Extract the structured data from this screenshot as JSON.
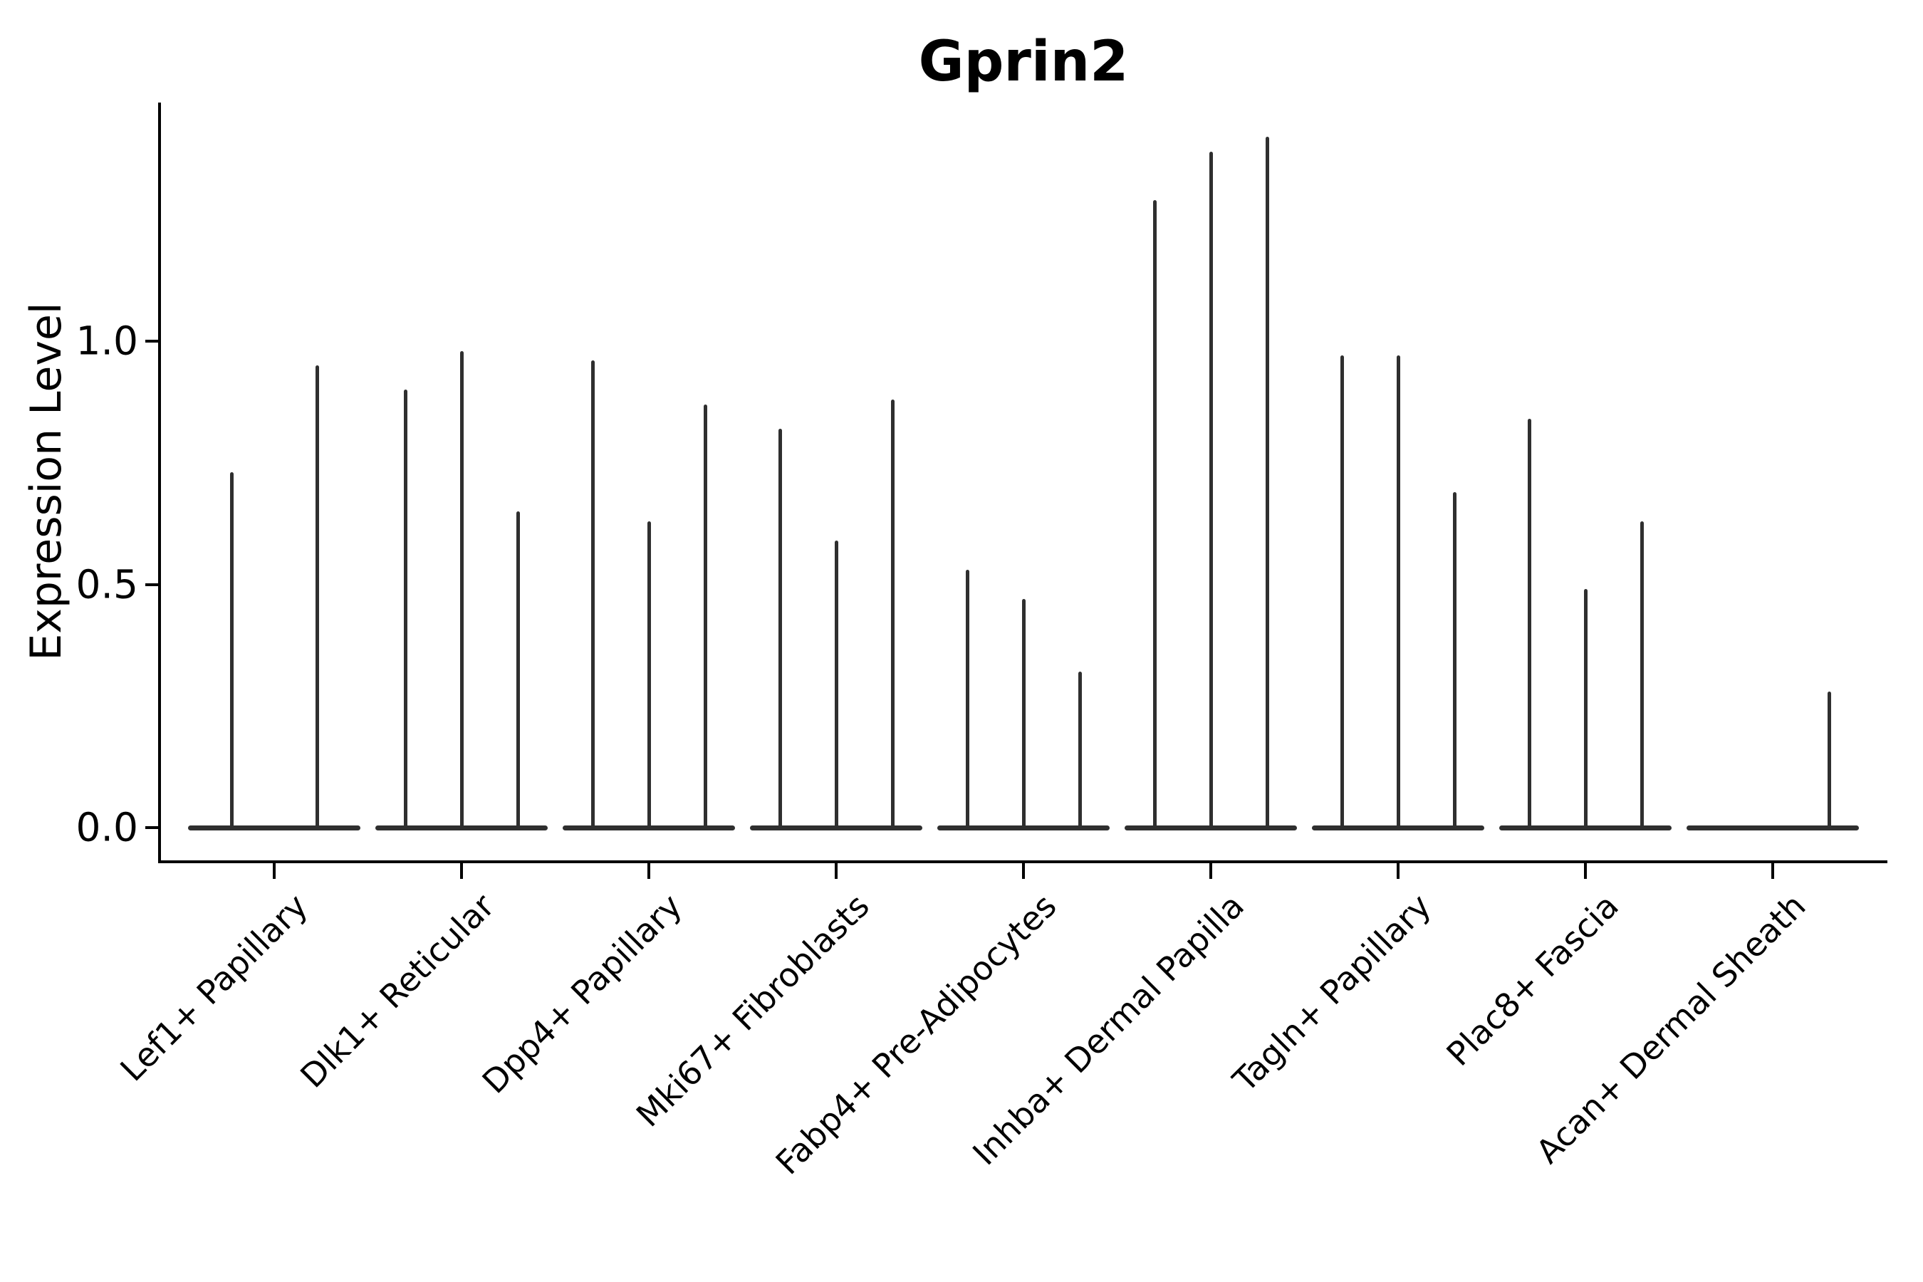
{
  "title": "Gprin2",
  "ylabel": "Expression Level",
  "colors": {
    "violin": "#2f2f2f",
    "axis": "#000000",
    "text": "#000000",
    "background": "#ffffff"
  },
  "chart_data": {
    "type": "violin",
    "title": "Gprin2",
    "xlabel": "",
    "ylabel": "Expression Level",
    "ylim": [
      -0.07,
      1.49
    ],
    "grid": false,
    "legend": null,
    "yticks": {
      "values": [
        0,
        0.5,
        1.0
      ],
      "labels": [
        "0.0",
        "0.5",
        "1.0"
      ]
    },
    "note": "Seurat/scanpy-style stacked violin: per category up to 3 thin split violins; density collapsed flat at 0 with a thin spike reaching the max expression value.",
    "groups": [
      {
        "category": "Lef1+ Papillary",
        "n_slots": 2,
        "spikes": [
          {
            "slot": 0,
            "max": 0.73
          },
          {
            "slot": 1,
            "max": 0.95
          }
        ]
      },
      {
        "category": "Dlk1+ Reticular",
        "n_slots": 3,
        "spikes": [
          {
            "slot": 0,
            "max": 0.9
          },
          {
            "slot": 1,
            "max": 0.98
          },
          {
            "slot": 2,
            "max": 0.65
          }
        ]
      },
      {
        "category": "Dpp4+ Papillary",
        "n_slots": 3,
        "spikes": [
          {
            "slot": 0,
            "max": 0.96
          },
          {
            "slot": 1,
            "max": 0.63
          },
          {
            "slot": 2,
            "max": 0.87
          }
        ]
      },
      {
        "category": "Mki67+ Fibroblasts",
        "n_slots": 3,
        "spikes": [
          {
            "slot": 0,
            "max": 0.82
          },
          {
            "slot": 1,
            "max": 0.59
          },
          {
            "slot": 2,
            "max": 0.88
          }
        ]
      },
      {
        "category": "Fabp4+ Pre-Adipocytes",
        "n_slots": 3,
        "spikes": [
          {
            "slot": 0,
            "max": 0.53
          },
          {
            "slot": 1,
            "max": 0.47
          },
          {
            "slot": 2,
            "max": 0.32
          }
        ]
      },
      {
        "category": "Inhba+ Dermal Papilla",
        "n_slots": 3,
        "spikes": [
          {
            "slot": 0,
            "max": 1.29
          },
          {
            "slot": 1,
            "max": 1.39
          },
          {
            "slot": 2,
            "max": 1.42
          }
        ]
      },
      {
        "category": "Tagln+ Papillary",
        "n_slots": 3,
        "spikes": [
          {
            "slot": 0,
            "max": 0.97
          },
          {
            "slot": 1,
            "max": 0.97
          },
          {
            "slot": 2,
            "max": 0.69
          }
        ]
      },
      {
        "category": "Plac8+ Fascia",
        "n_slots": 3,
        "spikes": [
          {
            "slot": 0,
            "max": 0.84
          },
          {
            "slot": 1,
            "max": 0.49
          },
          {
            "slot": 2,
            "max": 0.63
          }
        ]
      },
      {
        "category": "Acan+ Dermal Sheath",
        "n_slots": 3,
        "spikes": [
          {
            "slot": 2,
            "max": 0.28
          }
        ]
      }
    ]
  }
}
